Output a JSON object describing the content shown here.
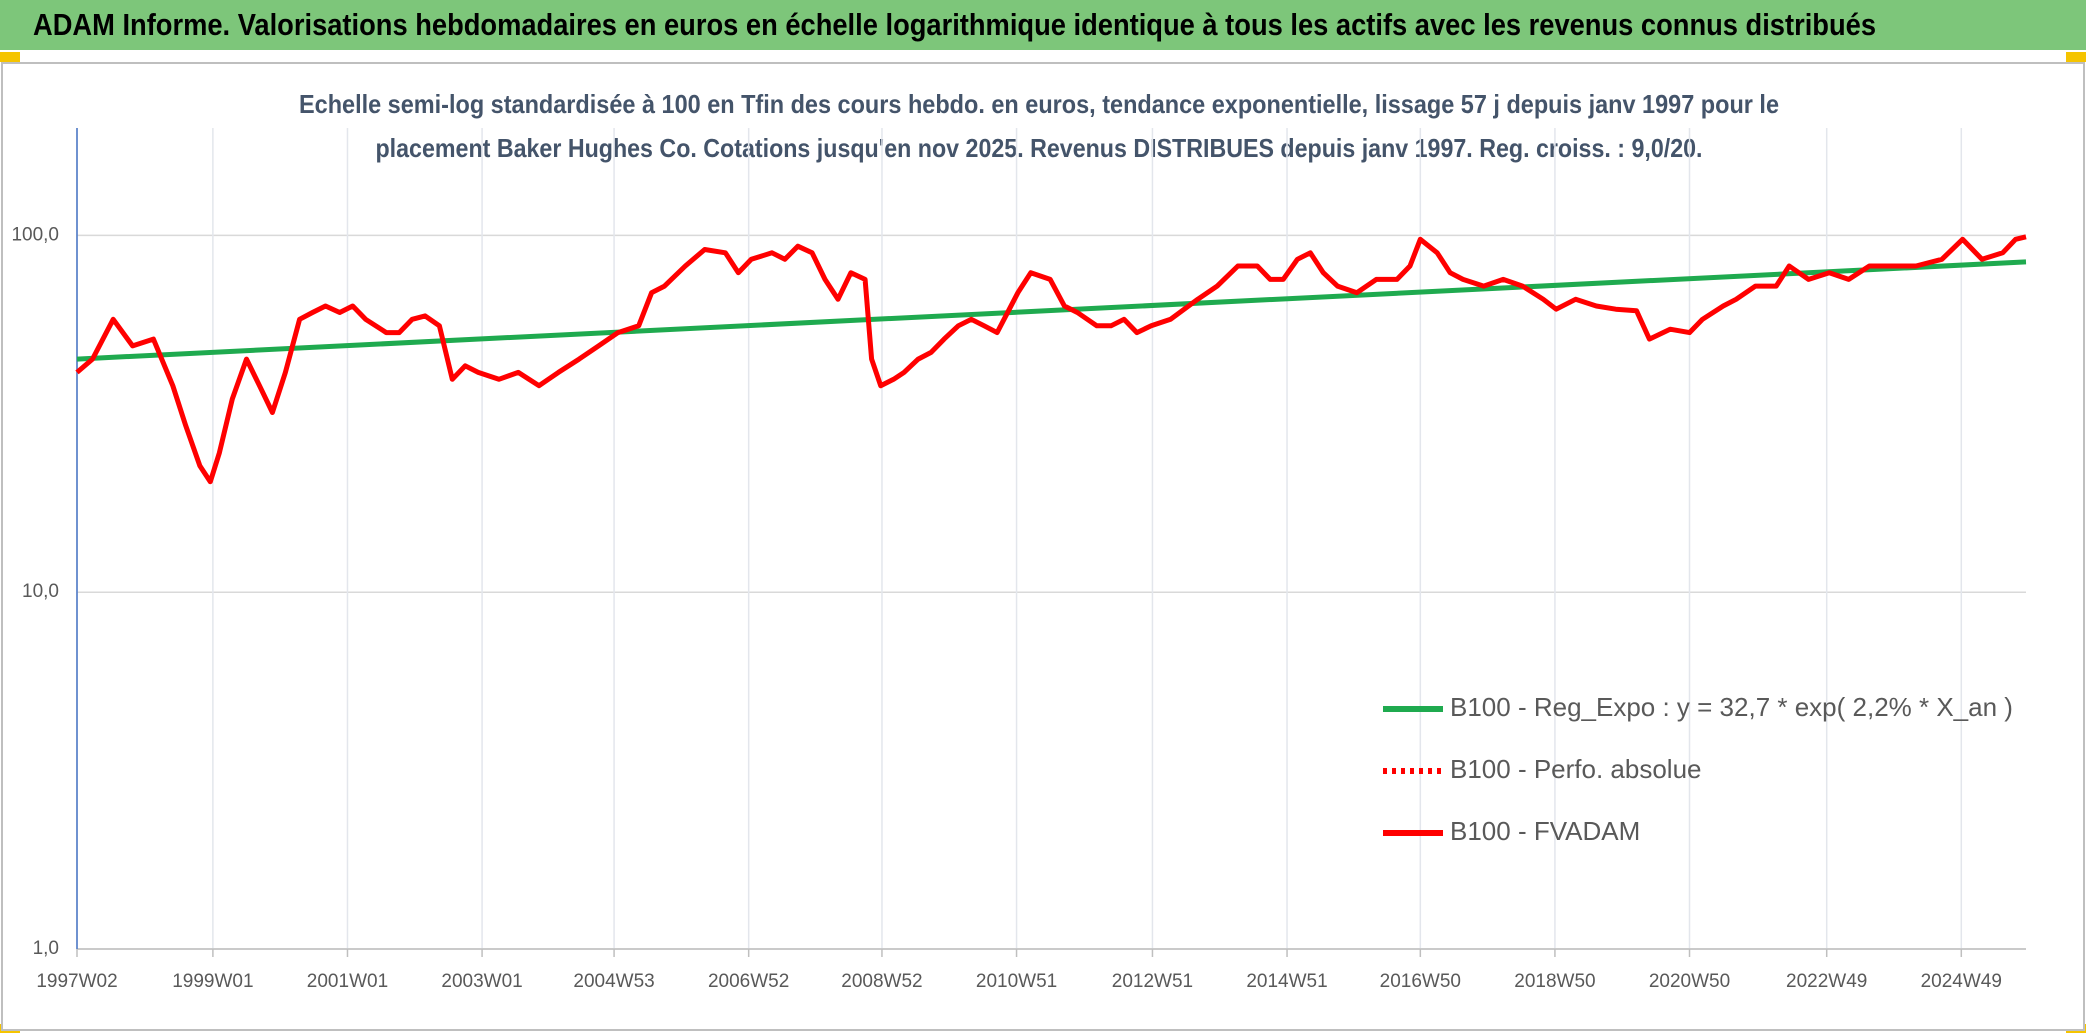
{
  "header": {
    "title": "ADAM Informe. Valorisations hebdomadaires en euros en échelle logarithmique identique à tous les actifs avec les revenus connus distribués"
  },
  "chart_data": {
    "type": "line",
    "subtitle": [
      "Echelle semi-log standardisée à 100 en Tfin des cours hebdo. en euros, tendance exponentielle, lissage 57 j depuis janv 1997 pour le",
      "placement Baker Hughes Co. Cotations jusqu'en nov 2025. Revenus DISTRIBUES depuis janv 1997. Reg. croiss. : 9,0/20."
    ],
    "log_y": true,
    "grid": true,
    "xlim": [
      0,
      1506
    ],
    "xticks": [
      {
        "value": 0,
        "label": "1997W02"
      },
      {
        "value": 105,
        "label": "1999W01"
      },
      {
        "value": 209,
        "label": "2001W01"
      },
      {
        "value": 313,
        "label": "2003W01"
      },
      {
        "value": 415,
        "label": "2004W53"
      },
      {
        "value": 519,
        "label": "2006W52"
      },
      {
        "value": 622,
        "label": "2008W52"
      },
      {
        "value": 726,
        "label": "2010W51"
      },
      {
        "value": 831,
        "label": "2012W51"
      },
      {
        "value": 935,
        "label": "2014W51"
      },
      {
        "value": 1038,
        "label": "2016W50"
      },
      {
        "value": 1142,
        "label": "2018W50"
      },
      {
        "value": 1246,
        "label": "2020W50"
      },
      {
        "value": 1352,
        "label": "2022W49"
      },
      {
        "value": 1456,
        "label": "2024W49"
      }
    ],
    "ylim": [
      1,
      200
    ],
    "yticks": [
      {
        "value": 1,
        "label": "1,0"
      },
      {
        "value": 10,
        "label": "10,0"
      },
      {
        "value": 100,
        "label": "100,0"
      }
    ],
    "series": [
      {
        "name": "B100 - Reg_Expo : y = 32,7 * exp( 2,2% *  X_an )",
        "color": "#1faa4f",
        "dash": "solid",
        "x": [
          0,
          1506
        ],
        "values": [
          45.0,
          84.3
        ]
      },
      {
        "name": "B100 - Perfo. absolue",
        "color": "#ff0000",
        "dash": "dotted",
        "x": [],
        "values": []
      },
      {
        "name": "B100 - FVADAM",
        "color": "#ff0000",
        "dash": "solid",
        "x": [
          0,
          12,
          28,
          43,
          59,
          74,
          84,
          95,
          103,
          110,
          120,
          131,
          141,
          151,
          161,
          172,
          182,
          192,
          203,
          213,
          223,
          239,
          249,
          259,
          269,
          280,
          290,
          300,
          310,
          326,
          341,
          357,
          372,
          388,
          403,
          418,
          434,
          444,
          454,
          470,
          485,
          501,
          511,
          521,
          537,
          547,
          557,
          568,
          578,
          588,
          598,
          609,
          614,
          621,
          631,
          639,
          650,
          660,
          670,
          681,
          691,
          701,
          711,
          727,
          737,
          752,
          763,
          773,
          788,
          799,
          809,
          819,
          830,
          845,
          866,
          881,
          897,
          912,
          922,
          932,
          943,
          953,
          963,
          974,
          989,
          1004,
          1020,
          1030,
          1038,
          1051,
          1061,
          1071,
          1087,
          1102,
          1117,
          1133,
          1143,
          1158,
          1174,
          1189,
          1205,
          1215,
          1231,
          1246,
          1256,
          1272,
          1282,
          1297,
          1313,
          1323,
          1338,
          1354,
          1369,
          1385,
          1400,
          1421,
          1441,
          1457,
          1472,
          1488,
          1498,
          1506
        ],
        "values": [
          41.3,
          45.0,
          58.2,
          49.0,
          51.2,
          37.9,
          29.3,
          22.6,
          20.4,
          24.6,
          34.8,
          45.0,
          37.9,
          31.9,
          41.3,
          58.2,
          60.8,
          63.4,
          60.8,
          63.4,
          58.2,
          53.4,
          53.4,
          58.2,
          59.5,
          55.8,
          39.5,
          43.1,
          41.3,
          39.5,
          41.3,
          37.9,
          41.3,
          45.0,
          49.0,
          53.4,
          55.8,
          69.1,
          72.1,
          82.1,
          91.3,
          89.4,
          78.6,
          85.7,
          89.4,
          85.7,
          93.3,
          89.4,
          75.3,
          66.2,
          78.6,
          75.3,
          45.0,
          37.9,
          39.5,
          41.3,
          45.0,
          47.0,
          51.2,
          55.8,
          58.2,
          55.8,
          53.4,
          69.1,
          78.6,
          75.3,
          63.4,
          60.8,
          55.8,
          55.8,
          58.2,
          53.4,
          55.8,
          58.2,
          66.2,
          72.1,
          82.1,
          82.1,
          75.3,
          75.3,
          85.7,
          89.4,
          78.6,
          72.1,
          69.1,
          75.3,
          75.3,
          82.1,
          97.5,
          89.4,
          78.6,
          75.3,
          72.1,
          75.3,
          72.1,
          66.2,
          62.1,
          66.2,
          63.4,
          62.1,
          61.5,
          51.2,
          54.6,
          53.4,
          58.2,
          63.4,
          66.2,
          72.1,
          72.1,
          82.1,
          75.3,
          78.6,
          75.3,
          82.1,
          82.1,
          82.1,
          85.7,
          97.5,
          85.7,
          89.4,
          97.5,
          99.1
        ]
      }
    ]
  }
}
